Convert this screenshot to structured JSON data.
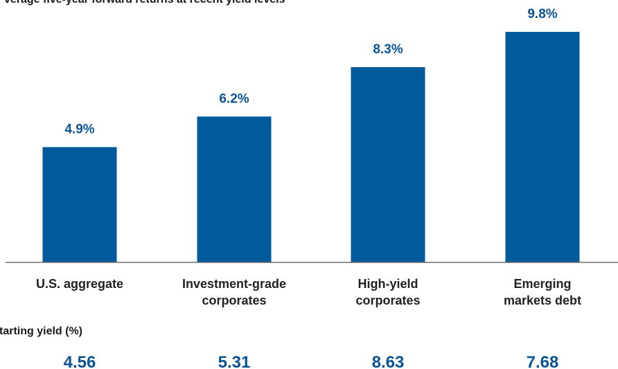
{
  "chart_data": {
    "type": "bar",
    "title": "verage five-year forward returns at recent yield levels",
    "categories": [
      [
        "U.S. aggregate"
      ],
      [
        "Investment-grade",
        "corporates"
      ],
      [
        "High-yield",
        "corporates"
      ],
      [
        "Emerging",
        "markets debt"
      ]
    ],
    "values": [
      4.9,
      6.2,
      8.3,
      9.8
    ],
    "value_labels": [
      "4.9%",
      "6.2%",
      "8.3%",
      "9.8%"
    ],
    "ylim": [
      0,
      9.8
    ],
    "grid": false,
    "bar_color": "#005a9c",
    "label_color": "#0b5394"
  },
  "starting_yield": {
    "header": "tarting yield (%)",
    "values": [
      "4.56",
      "5.31",
      "8.63",
      "7.68"
    ]
  }
}
